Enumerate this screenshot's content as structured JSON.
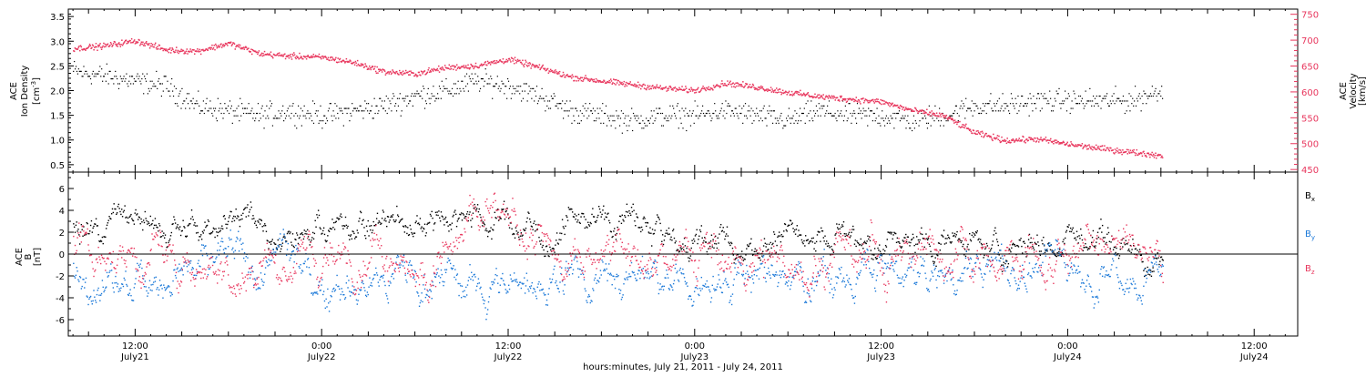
{
  "chart_data": [
    {
      "type": "scatter",
      "panel": "top",
      "xlabel": "hours:minutes, July 21, 2011 - July 24, 2011",
      "x_ticks": [
        {
          "hours": 12,
          "time": "12:00",
          "date": "July21"
        },
        {
          "hours": 24,
          "time": "0:00",
          "date": "July22"
        },
        {
          "hours": 36,
          "time": "12:00",
          "date": "July22"
        },
        {
          "hours": 48,
          "time": "0:00",
          "date": "July23"
        },
        {
          "hours": 60,
          "time": "12:00",
          "date": "July23"
        },
        {
          "hours": 72,
          "time": "0:00",
          "date": "July24"
        },
        {
          "hours": 84,
          "time": "12:00",
          "date": "July24"
        }
      ],
      "xlim_hours": [
        7.7,
        86.8
      ],
      "data_end_hours": 78.1,
      "left_axis": {
        "label_lines": [
          "ACE",
          "Ion Density",
          "[cm",
          "-3",
          "]"
        ],
        "ylim": [
          0.35,
          3.65
        ],
        "ticks": [
          "0.5",
          "1.0",
          "1.5",
          "2.0",
          "2.5",
          "3.0",
          "3.5"
        ],
        "tick_values": [
          0.5,
          1.0,
          1.5,
          2.0,
          2.5,
          3.0,
          3.5
        ],
        "color": "#000000"
      },
      "right_axis": {
        "label_lines": [
          "ACE",
          "Velocity",
          "[km/s]"
        ],
        "ylim": [
          445,
          760
        ],
        "ticks": [
          "450",
          "500",
          "550",
          "600",
          "650",
          "700",
          "750"
        ],
        "tick_values": [
          450,
          500,
          550,
          600,
          650,
          700,
          750
        ],
        "color": "#e8365d"
      },
      "series": [
        {
          "color": "#000000",
          "axis": "left",
          "x_hours": [
            8,
            10,
            12,
            14,
            16,
            18,
            20,
            22,
            24,
            26,
            28,
            30,
            32,
            34,
            36,
            38,
            40,
            42,
            44,
            46,
            48,
            50,
            52,
            54,
            56,
            58,
            60,
            62,
            64,
            66,
            68,
            70,
            72,
            74,
            76,
            78
          ],
          "values": [
            2.4,
            2.3,
            2.2,
            2.1,
            1.7,
            1.6,
            1.5,
            1.6,
            1.5,
            1.6,
            1.7,
            1.9,
            2.0,
            2.2,
            2.1,
            1.9,
            1.6,
            1.5,
            1.4,
            1.5,
            1.5,
            1.6,
            1.5,
            1.4,
            1.6,
            1.5,
            1.5,
            1.4,
            1.5,
            1.7,
            1.7,
            1.8,
            1.8,
            1.8,
            1.8,
            2.0
          ]
        },
        {
          "color": "#e8365d",
          "axis": "right",
          "x_hours": [
            8,
            10,
            12,
            14,
            16,
            18,
            20,
            22,
            24,
            26,
            28,
            30,
            32,
            34,
            36,
            38,
            40,
            42,
            44,
            46,
            48,
            50,
            52,
            54,
            56,
            58,
            60,
            62,
            64,
            66,
            68,
            70,
            72,
            74,
            76,
            78
          ],
          "values": [
            685,
            690,
            700,
            682,
            680,
            695,
            675,
            670,
            668,
            658,
            640,
            636,
            648,
            652,
            664,
            648,
            630,
            622,
            615,
            608,
            604,
            618,
            610,
            600,
            592,
            587,
            582,
            565,
            555,
            522,
            507,
            510,
            500,
            492,
            485,
            478
          ]
        }
      ]
    },
    {
      "type": "scatter",
      "panel": "bottom",
      "ylabel_lines": [
        "ACE",
        "B",
        "[nT]"
      ],
      "ylim": [
        -7.5,
        7.5
      ],
      "y_ticks": [
        "-6",
        "-4",
        "-2",
        "0",
        "2",
        "4",
        "6"
      ],
      "y_tick_values": [
        -6,
        -4,
        -2,
        0,
        2,
        4,
        6
      ],
      "zero_line": true,
      "x_hours": [
        8,
        10,
        12,
        14,
        16,
        18,
        20,
        22,
        24,
        26,
        28,
        30,
        32,
        34,
        36,
        38,
        40,
        42,
        44,
        46,
        48,
        50,
        52,
        54,
        56,
        58,
        60,
        62,
        64,
        66,
        68,
        70,
        72,
        74,
        76,
        78
      ],
      "series": [
        {
          "name": "B",
          "sub": "x",
          "color": "#000000",
          "values": [
            3.0,
            2.0,
            2.5,
            2.2,
            2.5,
            3.0,
            3.0,
            2.5,
            1.5,
            2.5,
            3.0,
            3.5,
            4.0,
            3.5,
            3.5,
            2.0,
            3.0,
            3.5,
            3.0,
            2.0,
            1.0,
            0.5,
            1.5,
            1.0,
            1.5,
            1.0,
            1.0,
            0.5,
            1.0,
            1.0,
            0.5,
            1.0,
            1.5,
            1.5,
            1.0,
            -1.5
          ]
        },
        {
          "name": "B",
          "sub": "y",
          "color": "#1a78d8",
          "values": [
            -1.5,
            -2.0,
            -2.0,
            -1.5,
            -1.5,
            -1.5,
            -2.0,
            -1.0,
            -1.5,
            -2.0,
            -2.0,
            -1.5,
            -2.0,
            -3.0,
            -3.5,
            -2.5,
            -1.5,
            -1.5,
            -1.0,
            -2.0,
            -2.5,
            -2.5,
            -2.0,
            -2.5,
            -2.0,
            -1.5,
            -2.0,
            -1.5,
            -2.0,
            -1.5,
            -2.0,
            -1.0,
            -1.0,
            -1.5,
            -1.5,
            -1.5
          ]
        },
        {
          "name": "B",
          "sub": "z",
          "color": "#e8365d",
          "values": [
            2.0,
            0.5,
            -0.5,
            -1.0,
            0.5,
            -1.0,
            0.0,
            -1.0,
            -1.0,
            -0.5,
            0.0,
            -1.0,
            1.5,
            2.5,
            3.0,
            0.5,
            -0.5,
            0.0,
            -0.5,
            0.0,
            0.0,
            -0.5,
            -1.0,
            -1.0,
            -0.5,
            -1.0,
            -0.5,
            -0.5,
            -0.5,
            -0.5,
            0.0,
            -0.5,
            0.5,
            0.0,
            0.5,
            -1.0
          ]
        }
      ]
    }
  ]
}
